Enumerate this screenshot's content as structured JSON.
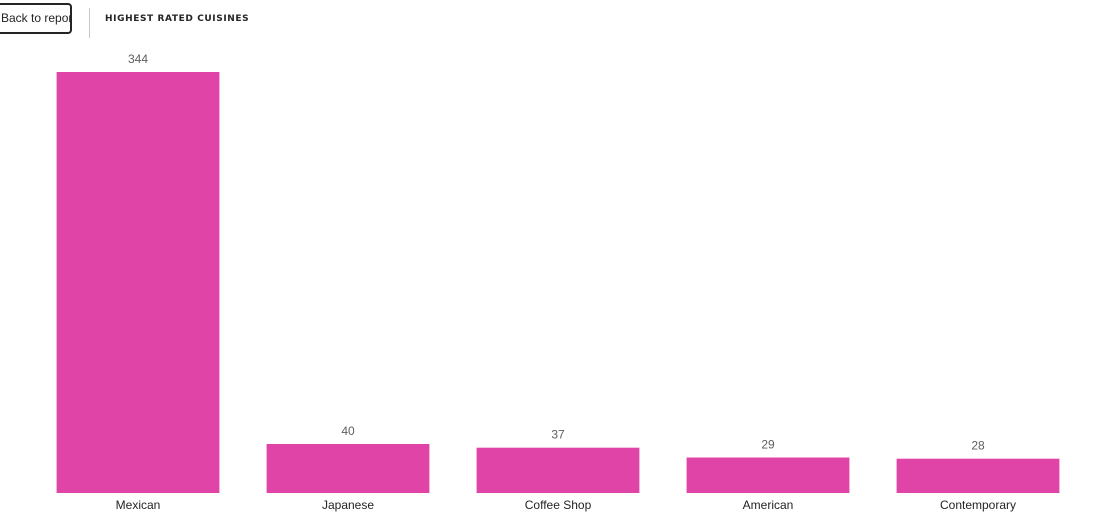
{
  "header": {
    "back_label": "Back to report",
    "visual_title": "HIGHEST RATED CUISINES"
  },
  "colors": {
    "bar": "#e044a7",
    "data_label": "#605e5c",
    "tick_label": "#252423"
  },
  "chart_data": {
    "type": "bar",
    "title": "HIGHEST RATED CUISINES",
    "categories": [
      "Mexican",
      "Japanese",
      "Coffee Shop",
      "American",
      "Contemporary"
    ],
    "values": [
      344,
      40,
      37,
      29,
      28
    ],
    "data_labels": [
      "344",
      "40",
      "37",
      "29",
      "28"
    ],
    "xlabel": "",
    "ylabel": "",
    "ylim": [
      0,
      344
    ],
    "grid": false,
    "legend": "none"
  }
}
